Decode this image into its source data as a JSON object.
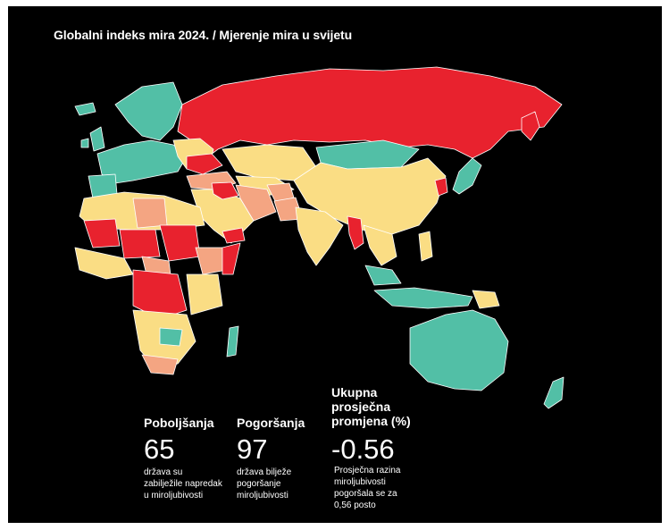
{
  "title": "Globalni indeks mira 2024. / Mjerenje mira u svijetu",
  "colors": {
    "background": "#000000",
    "teal": "#52bfa6",
    "yellow": "#fadd84",
    "salmon": "#f4a582",
    "red": "#e8222e",
    "border": "#ffffff"
  },
  "stats": [
    {
      "label": "Poboljšanja",
      "value": "65",
      "description_lines": [
        "država su",
        "zabilježile napredak",
        "u miroljubivosti"
      ]
    },
    {
      "label": "Pogoršanja",
      "value": "97",
      "description_lines": [
        "država bilježe",
        "pogoršanje",
        "miroljubivosti"
      ]
    },
    {
      "label_lines": [
        "Ukupna",
        "prosječna",
        "promjena (%)"
      ],
      "value": "-0.56",
      "description_lines": [
        "Prosječna razina",
        "miroljubivosti",
        "pogoršala se za",
        "0,56 posto"
      ]
    }
  ]
}
